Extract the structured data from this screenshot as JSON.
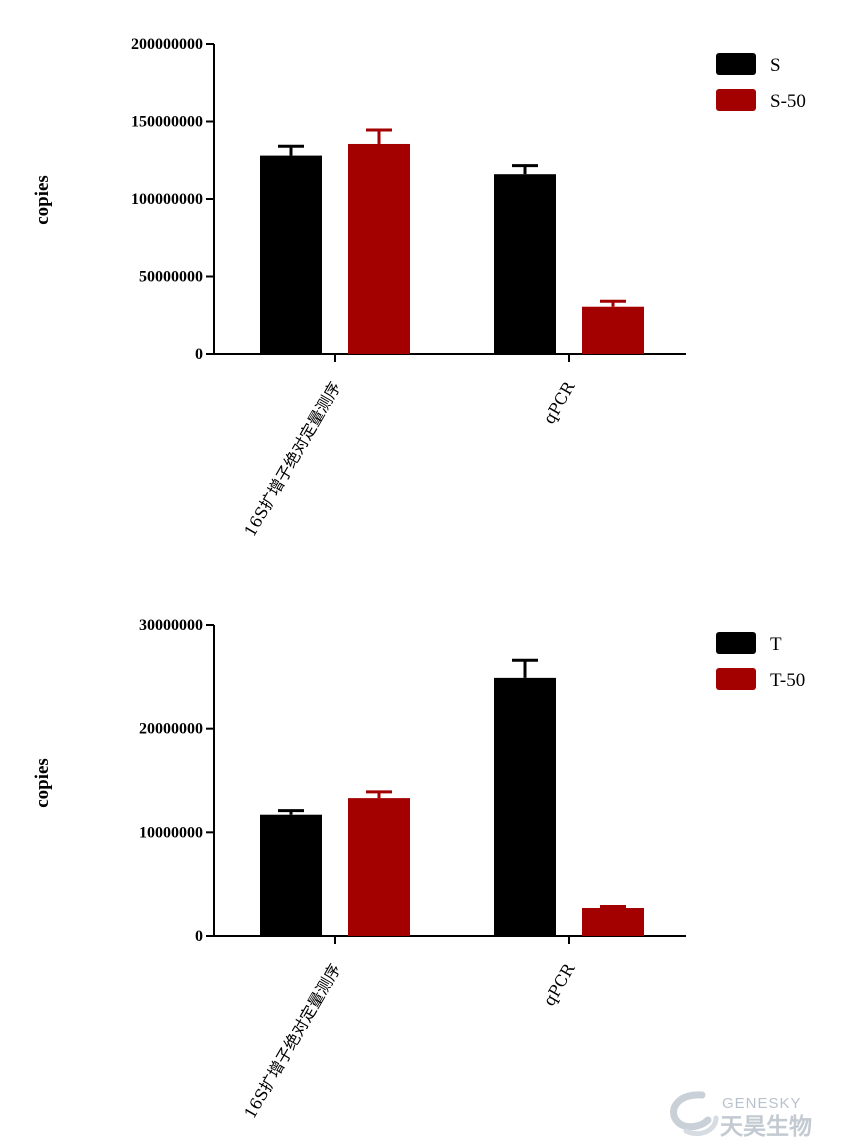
{
  "chart_data": [
    {
      "type": "bar",
      "categories": [
        "16S扩增子绝对定量测序",
        "qPCR"
      ],
      "series": [
        {
          "name": "S",
          "color": "#000000",
          "values": [
            128000000,
            116000000
          ],
          "errors": [
            6000000,
            5500000
          ]
        },
        {
          "name": "S-50",
          "color": "#a30000",
          "values": [
            135500000,
            30500000
          ],
          "errors": [
            9000000,
            3500000
          ]
        }
      ],
      "ylabel": "copies",
      "ylim": [
        0,
        200000000
      ],
      "yticks": [
        "0",
        "50000000",
        "100000000",
        "150000000",
        "200000000"
      ],
      "legend": "top-right",
      "grid": false
    },
    {
      "type": "bar",
      "categories": [
        "16S扩增子绝对定量测序",
        "qPCR"
      ],
      "series": [
        {
          "name": "T",
          "color": "#000000",
          "values": [
            11700000,
            24900000
          ],
          "errors": [
            400000,
            1700000
          ]
        },
        {
          "name": "T-50",
          "color": "#a30000",
          "values": [
            13300000,
            2700000
          ],
          "errors": [
            600000,
            150000
          ]
        }
      ],
      "ylabel": "copies",
      "ylim": [
        0,
        30000000
      ],
      "yticks": [
        "0",
        "10000000",
        "20000000",
        "30000000"
      ],
      "legend": "top-right",
      "grid": false
    }
  ],
  "watermark": {
    "brand_en": "GENESKY",
    "brand_cn": "天昊生物"
  }
}
